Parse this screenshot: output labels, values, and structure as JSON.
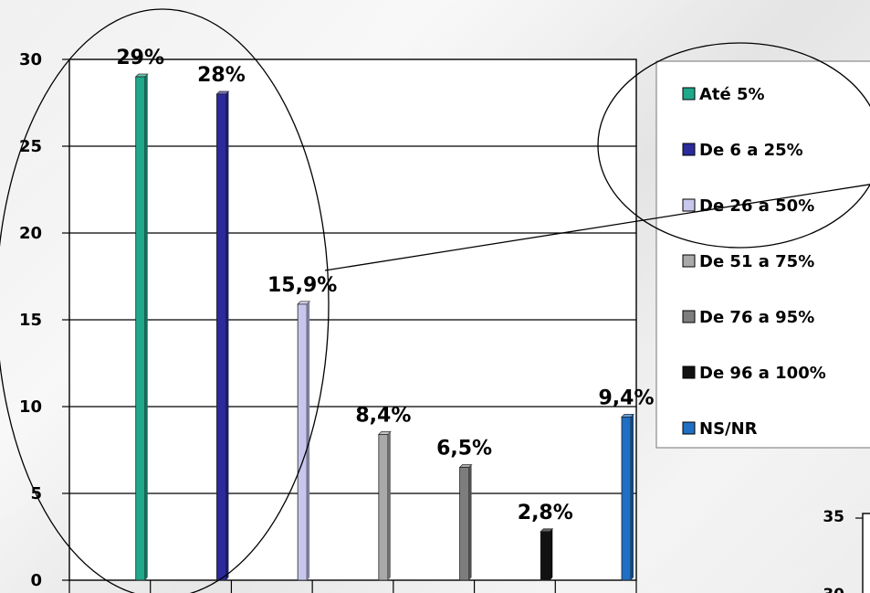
{
  "chart_data": {
    "type": "bar",
    "categories": [
      "Até 5%",
      "De 6 a 25%",
      "De 26 a 50%",
      "De 51 a 75%",
      "De 76 a 95%",
      "De 96 a 100%",
      "NS/NR"
    ],
    "values": [
      29,
      28,
      15.9,
      8.4,
      6.5,
      2.8,
      9.4
    ],
    "data_labels": [
      "29%",
      "28%",
      "15,9%",
      "8,4%",
      "6,5%",
      "2,8%",
      "9,4%"
    ],
    "colors": [
      "#1fa88a",
      "#2b2b9c",
      "#c7c7ee",
      "#a9a9a9",
      "#7d7d7d",
      "#111111",
      "#1f6fc4"
    ],
    "ylim": [
      0,
      30
    ],
    "yticks": [
      "0",
      "5",
      "10",
      "15",
      "20",
      "25",
      "30"
    ],
    "grid": true,
    "legend_position": "right",
    "title": "",
    "xlabel": "",
    "ylabel": ""
  },
  "inset_chart": {
    "yticks": [
      "35",
      "30"
    ]
  }
}
